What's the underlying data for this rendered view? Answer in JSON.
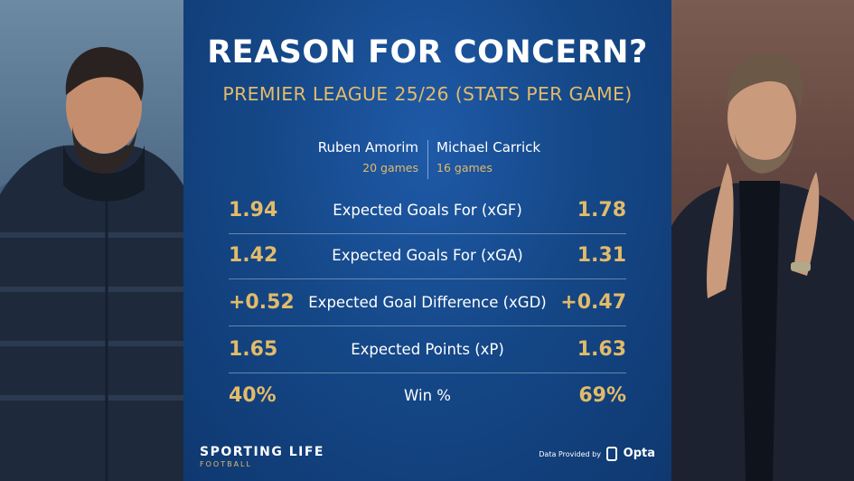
{
  "title": "REASON FOR CONCERN?",
  "subtitle": "PREMIER LEAGUE 25/26 (STATS PER GAME)",
  "coaches": {
    "left": {
      "name": "Ruben Amorim",
      "games": "20 games"
    },
    "right": {
      "name": "Michael Carrick",
      "games": "16 games"
    }
  },
  "rows": [
    {
      "label": "Expected Goals For (xGF)",
      "left": "1.94",
      "right": "1.78"
    },
    {
      "label": "Expected Goals For (xGA)",
      "left": "1.42",
      "right": "1.31"
    },
    {
      "label": "Expected Goal Difference (xGD)",
      "left": "+0.52",
      "right": "+0.47"
    },
    {
      "label": "Expected Points (xP)",
      "left": "1.65",
      "right": "1.63"
    },
    {
      "label": "Win %",
      "left": "40%",
      "right": "69%"
    }
  ],
  "footer": {
    "brand": "SPORTING LIFE",
    "brand_sub": "FOOTBALL",
    "provider_text": "Data Provided by",
    "provider_name": "Opta"
  },
  "colors": {
    "gold": "#e2bb6a",
    "panel_blue": "#154888"
  }
}
